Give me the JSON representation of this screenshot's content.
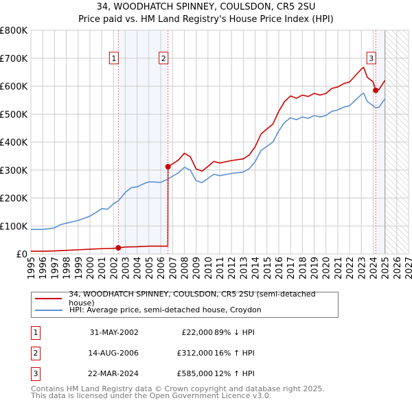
{
  "title": "34, WOODHATCH SPINNEY, COULSDON, CR5 2SU",
  "subtitle": "Price paid vs. HM Land Registry's House Price Index (HPI)",
  "chart_data": {
    "type": "line",
    "title": "34, WOODHATCH SPINNEY, COULSDON, CR5 2SU — Price paid vs. HM Land Registry's House Price Index (HPI)",
    "xlim": [
      1995,
      2027
    ],
    "ylim": [
      0,
      800000
    ],
    "yticks": [
      {
        "v": 0,
        "label": "£0"
      },
      {
        "v": 100000,
        "label": "£100K"
      },
      {
        "v": 200000,
        "label": "£200K"
      },
      {
        "v": 300000,
        "label": "£300K"
      },
      {
        "v": 400000,
        "label": "£400K"
      },
      {
        "v": 500000,
        "label": "£500K"
      },
      {
        "v": 600000,
        "label": "£600K"
      },
      {
        "v": 700000,
        "label": "£700K"
      },
      {
        "v": 800000,
        "label": "£800K"
      }
    ],
    "xticks": [
      "1995",
      "1996",
      "1997",
      "1998",
      "1999",
      "2000",
      "2001",
      "2002",
      "2003",
      "2004",
      "2005",
      "2006",
      "2007",
      "2008",
      "2009",
      "2010",
      "2011",
      "2012",
      "2013",
      "2014",
      "2015",
      "2016",
      "2017",
      "2018",
      "2019",
      "2020",
      "2021",
      "2022",
      "2023",
      "2024",
      "2025",
      "2026",
      "2027"
    ],
    "grid": true,
    "forecast_from": 2025.0,
    "shaded_ranges": [
      [
        2002.41,
        2006.62
      ],
      [
        2024.22,
        2025.0
      ]
    ],
    "series": [
      {
        "name": "34, WOODHATCH SPINNEY, COULSDON, CR5 2SU (semi-detached house)",
        "color": "#cc0000",
        "x": [
          1995,
          1996,
          1997,
          1998,
          1999,
          2000,
          2001,
          2002,
          2002.41,
          2003,
          2004,
          2005,
          2006.6,
          2006.62,
          2007,
          2007.5,
          2008,
          2008.5,
          2009,
          2009.5,
          2010,
          2010.5,
          2011,
          2012,
          2013,
          2013.5,
          2014,
          2014.5,
          2015,
          2015.5,
          2016,
          2016.5,
          2017,
          2017.5,
          2018,
          2018.5,
          2019,
          2019.5,
          2020,
          2020.5,
          2021,
          2021.5,
          2022,
          2022.5,
          2023,
          2023.2,
          2023.5,
          2024,
          2024.22,
          2024.5,
          2025
        ],
        "y": [
          10000,
          10000,
          11000,
          13000,
          15000,
          17000,
          19000,
          20000,
          22000,
          25000,
          26000,
          28000,
          28000,
          312000,
          322000,
          336000,
          360000,
          348000,
          304000,
          296000,
          313000,
          331000,
          325000,
          334000,
          340000,
          354000,
          383000,
          429000,
          447000,
          464000,
          510000,
          545000,
          565000,
          557000,
          568000,
          563000,
          574000,
          568000,
          574000,
          592000,
          597000,
          609000,
          615000,
          638000,
          661000,
          667000,
          632000,
          615000,
          585000,
          588000,
          621000
        ]
      },
      {
        "name": "HPI: Average price, semi-detached house, Croydon",
        "color": "#5b8fd4",
        "x": [
          1995,
          1996,
          1997,
          1997.5,
          1998,
          1999,
          2000,
          2000.5,
          2001,
          2001.5,
          2002,
          2002.41,
          2003,
          2003.5,
          2004,
          2004.5,
          2005,
          2006,
          2006.62,
          2007,
          2007.5,
          2008,
          2008.5,
          2009,
          2009.5,
          2010,
          2010.5,
          2011,
          2012,
          2013,
          2013.5,
          2014,
          2014.5,
          2015,
          2015.5,
          2016,
          2016.5,
          2017,
          2017.5,
          2018,
          2018.5,
          2019,
          2019.5,
          2020,
          2020.5,
          2021,
          2021.5,
          2022,
          2022.5,
          2023,
          2023.2,
          2023.5,
          2024,
          2024.22,
          2024.5,
          2025
        ],
        "y": [
          88000,
          88000,
          93000,
          105000,
          110000,
          120000,
          135000,
          148000,
          162000,
          160000,
          180000,
          190000,
          220000,
          237000,
          240000,
          250000,
          258000,
          256000,
          268000,
          278000,
          290000,
          310000,
          300000,
          262000,
          255000,
          270000,
          285000,
          280000,
          288000,
          293000,
          305000,
          330000,
          370000,
          385000,
          400000,
          440000,
          470000,
          487000,
          480000,
          490000,
          485000,
          495000,
          490000,
          495000,
          510000,
          515000,
          525000,
          530000,
          550000,
          570000,
          575000,
          545000,
          530000,
          522000,
          525000,
          555000
        ]
      }
    ],
    "sales": [
      {
        "n": "1",
        "x": 2002.41,
        "y": 22000,
        "date": "31-MAY-2002",
        "price": "£22,000",
        "hpi": "89% ↓ HPI"
      },
      {
        "n": "2",
        "x": 2006.62,
        "y": 312000,
        "date": "14-AUG-2006",
        "price": "£312,000",
        "hpi": "16% ↑ HPI"
      },
      {
        "n": "3",
        "x": 2024.22,
        "y": 585000,
        "date": "22-MAR-2024",
        "price": "£585,000",
        "hpi": "12% ↑ HPI"
      }
    ]
  },
  "legend": {
    "property": "34, WOODHATCH SPINNEY, COULSDON, CR5 2SU (semi-detached house)",
    "hpi": "HPI: Average price, semi-detached house, Croydon"
  },
  "footer": {
    "line1": "Contains HM Land Registry data © Crown copyright and database right 2025.",
    "line2": "This data is licensed under the Open Government Licence v3.0."
  }
}
